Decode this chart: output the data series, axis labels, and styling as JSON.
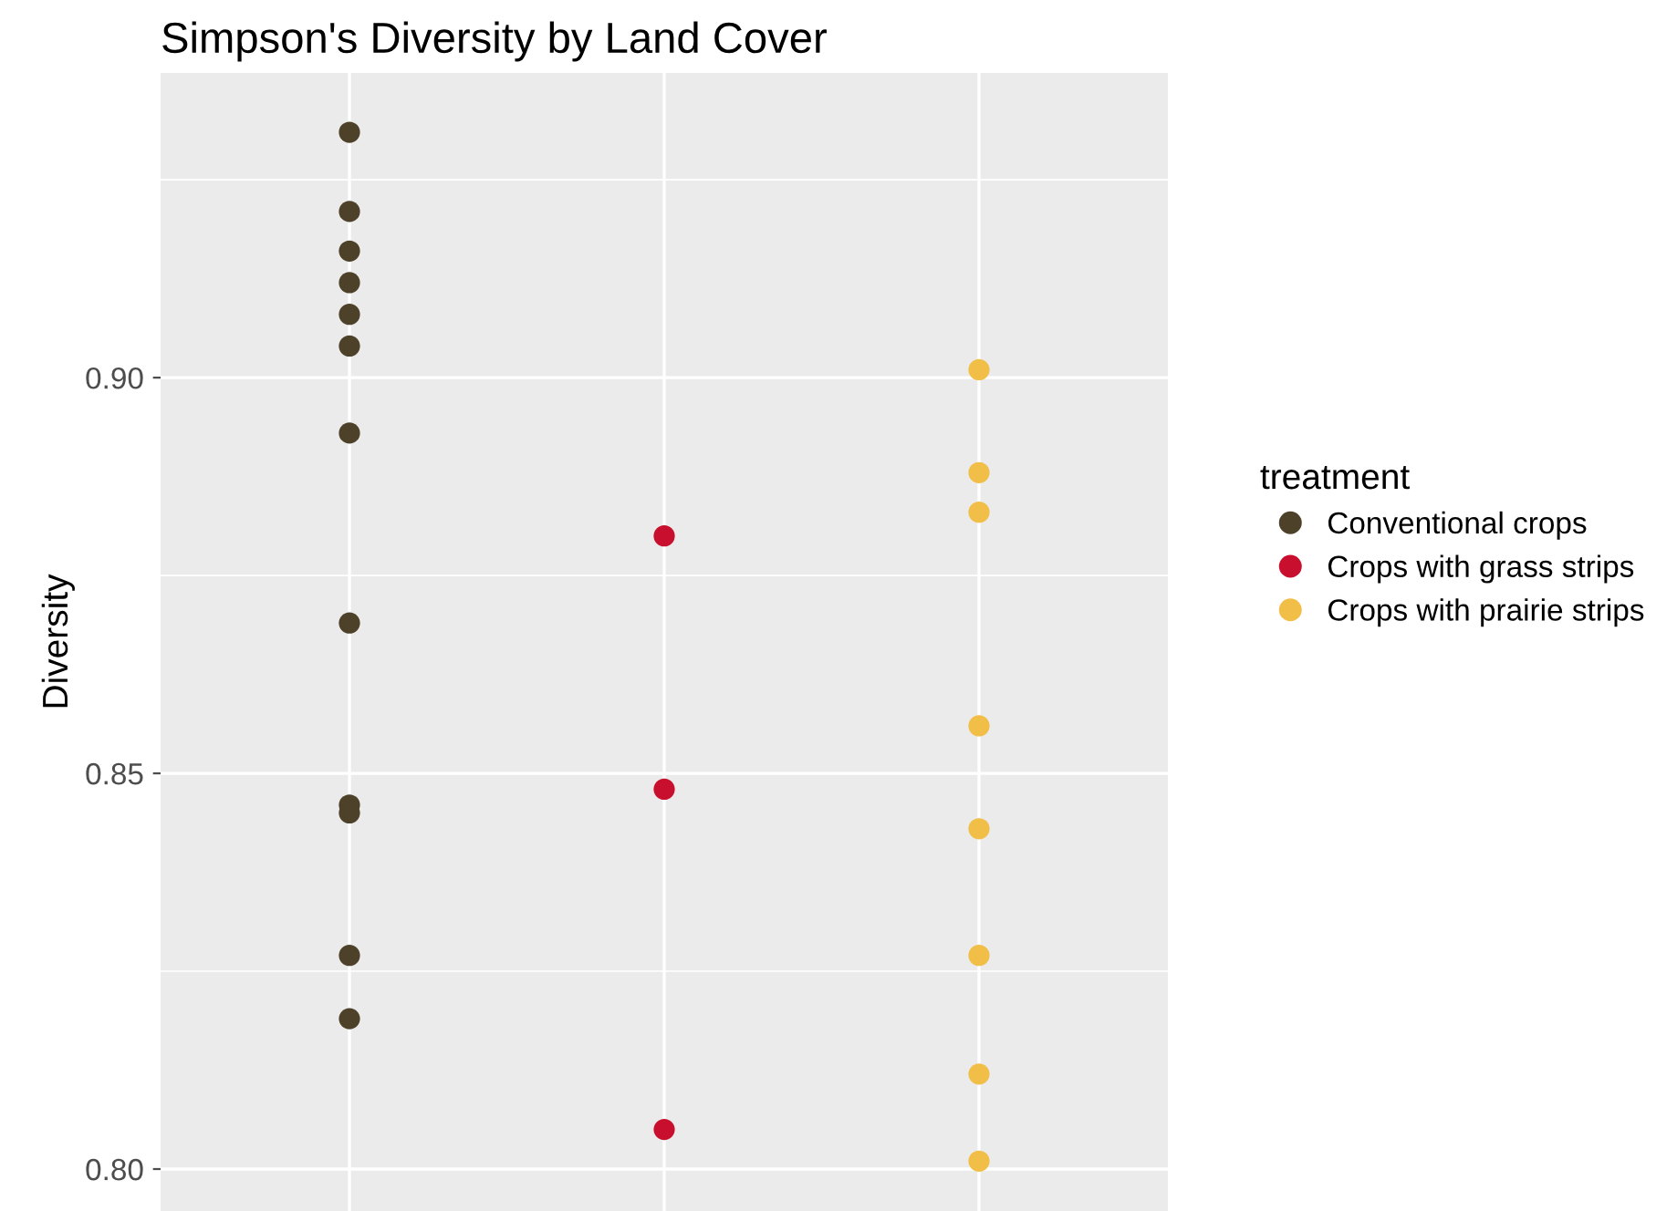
{
  "chart_data": {
    "type": "scatter",
    "title": "Simpson's Diversity by Land Cover",
    "ylabel": "Diversity",
    "legend_title": "treatment",
    "categories": [
      null,
      null,
      null
    ],
    "series": [
      {
        "name": "Conventional crops",
        "color": "#4d4229",
        "values": [
          0.931,
          null,
          null
        ]
      },
      {
        "color": "#4d4229",
        "values": [
          0.921,
          null,
          null
        ]
      },
      {
        "color": "#4d4229",
        "values": [
          0.916,
          null,
          null
        ]
      },
      {
        "color": "#4d4229",
        "values": [
          0.912,
          null,
          null
        ]
      },
      {
        "color": "#4d4229",
        "values": [
          0.908,
          null,
          null
        ]
      },
      {
        "color": "#4d4229",
        "values": [
          0.904,
          null,
          null
        ]
      },
      {
        "color": "#4d4229",
        "values": [
          0.893,
          null,
          null
        ]
      },
      {
        "color": "#4d4229",
        "values": [
          0.869,
          null,
          null
        ]
      },
      {
        "color": "#4d4229",
        "values": [
          0.846,
          null,
          null
        ]
      },
      {
        "color": "#4d4229",
        "values": [
          0.845,
          null,
          null
        ]
      },
      {
        "color": "#4d4229",
        "values": [
          0.827,
          null,
          null
        ]
      },
      {
        "color": "#4d4229",
        "values": [
          0.819,
          null,
          null
        ]
      },
      {
        "name": "Crops with grass strips",
        "color": "#c8102e",
        "values": [
          null,
          0.88,
          null
        ]
      },
      {
        "color": "#c8102e",
        "values": [
          null,
          0.848,
          null
        ]
      },
      {
        "color": "#c8102e",
        "values": [
          null,
          0.805,
          null
        ]
      },
      {
        "name": "Crops with prairie strips",
        "color": "#f1be48",
        "values": [
          null,
          null,
          0.901
        ]
      },
      {
        "color": "#f1be48",
        "values": [
          null,
          null,
          0.888
        ]
      },
      {
        "color": "#f1be48",
        "values": [
          null,
          null,
          0.883
        ]
      },
      {
        "color": "#f1be48",
        "values": [
          null,
          null,
          0.856
        ]
      },
      {
        "color": "#f1be48",
        "values": [
          null,
          null,
          0.843
        ]
      },
      {
        "color": "#f1be48",
        "values": [
          null,
          null,
          0.827
        ]
      },
      {
        "color": "#f1be48",
        "values": [
          null,
          null,
          0.812
        ]
      },
      {
        "color": "#f1be48",
        "values": [
          null,
          null,
          0.801
        ]
      }
    ],
    "ylim": [
      0.7947,
      0.9385
    ],
    "yticks": [
      {
        "value": 0.8,
        "label": "0.80"
      },
      {
        "value": 0.85,
        "label": "0.85"
      },
      {
        "value": 0.9,
        "label": "0.90"
      }
    ],
    "grid": true,
    "legend": "right",
    "marker": "circle",
    "tick_labels": "y"
  }
}
